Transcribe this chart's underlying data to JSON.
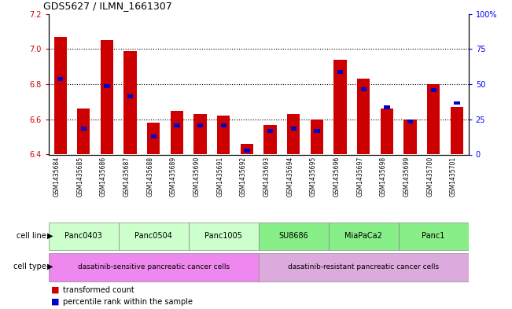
{
  "title": "GDS5627 / ILMN_1661307",
  "samples": [
    "GSM1435684",
    "GSM1435685",
    "GSM1435686",
    "GSM1435687",
    "GSM1435688",
    "GSM1435689",
    "GSM1435690",
    "GSM1435691",
    "GSM1435692",
    "GSM1435693",
    "GSM1435694",
    "GSM1435695",
    "GSM1435696",
    "GSM1435697",
    "GSM1435698",
    "GSM1435699",
    "GSM1435700",
    "GSM1435701"
  ],
  "red_values": [
    7.07,
    6.66,
    7.05,
    6.99,
    6.58,
    6.65,
    6.63,
    6.62,
    6.46,
    6.57,
    6.63,
    6.6,
    6.94,
    6.83,
    6.66,
    6.6,
    6.8,
    6.67
  ],
  "blue_values": [
    55,
    20,
    50,
    43,
    14,
    22,
    22,
    22,
    4,
    18,
    20,
    18,
    60,
    48,
    35,
    25,
    47,
    38
  ],
  "ylim_left": [
    6.4,
    7.2
  ],
  "ylim_right": [
    0,
    100
  ],
  "yticks_left": [
    6.4,
    6.6,
    6.8,
    7.0,
    7.2
  ],
  "yticks_right": [
    0,
    25,
    50,
    75,
    100
  ],
  "ytick_labels_right": [
    "0",
    "25",
    "50",
    "75",
    "100%"
  ],
  "red_color": "#cc0000",
  "blue_color": "#0000cc",
  "bar_width": 0.55,
  "cell_lines": [
    {
      "label": "Panc0403",
      "start": 0,
      "end": 2,
      "color": "#ccffcc"
    },
    {
      "label": "Panc0504",
      "start": 3,
      "end": 5,
      "color": "#ccffcc"
    },
    {
      "label": "Panc1005",
      "start": 6,
      "end": 8,
      "color": "#ccffcc"
    },
    {
      "label": "SU8686",
      "start": 9,
      "end": 11,
      "color": "#88ee88"
    },
    {
      "label": "MiaPaCa2",
      "start": 12,
      "end": 14,
      "color": "#88ee88"
    },
    {
      "label": "Panc1",
      "start": 15,
      "end": 17,
      "color": "#88ee88"
    }
  ],
  "cell_types": [
    {
      "label": "dasatinib-sensitive pancreatic cancer cells",
      "start": 0,
      "end": 8,
      "color": "#ee88ee"
    },
    {
      "label": "dasatinib-resistant pancreatic cancer cells",
      "start": 9,
      "end": 17,
      "color": "#ddaadd"
    }
  ],
  "legend_items": [
    {
      "color": "#cc0000",
      "label": "transformed count"
    },
    {
      "color": "#0000cc",
      "label": "percentile rank within the sample"
    }
  ],
  "xtick_bg_color": "#cccccc",
  "grid_color": "black",
  "grid_linestyle": "dotted"
}
